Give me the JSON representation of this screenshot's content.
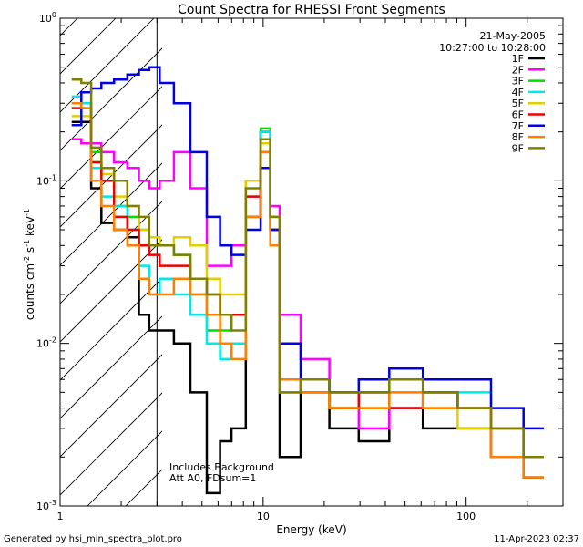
{
  "chart_data": {
    "type": "line",
    "title": "Count Spectra for RHESSI Front Segments",
    "xlabel": "Energy (keV)",
    "ylabel_main": "counts cm",
    "ylabel_sup1": "-2",
    "ylabel_mid": " s",
    "ylabel_sup2": "-1",
    "ylabel_end": " keV",
    "ylabel_sup3": "-1",
    "x_scale": "log",
    "y_scale": "log",
    "xlim": [
      1,
      300
    ],
    "ylim": [
      0.001,
      1
    ],
    "x_ticks": [
      {
        "value": 1,
        "label": "1"
      },
      {
        "value": 10,
        "label": "10"
      },
      {
        "value": 100,
        "label": "100"
      }
    ],
    "y_ticks": [
      {
        "value": 1,
        "base": "10",
        "exp": "0"
      },
      {
        "value": 0.1,
        "base": "10",
        "exp": "-1"
      },
      {
        "value": 0.01,
        "base": "10",
        "exp": "-2"
      },
      {
        "value": 0.001,
        "base": "10",
        "exp": "-3"
      }
    ],
    "attenuator_cutoff_kev": 3,
    "date": "21-May-2005",
    "time_range": "10:27:00 to 10:28:00",
    "notes": [
      "Includes Background",
      "Att A0, FDsum=1"
    ],
    "footer_left": "Generated by hsi_min_spectra_plot.pro",
    "footer_right": "11-Apr-2023 02:37",
    "series": [
      {
        "name": "1F",
        "color": "#000000",
        "values": [
          [
            1.2,
            0.23
          ],
          [
            1.35,
            0.23
          ],
          [
            1.5,
            0.09
          ],
          [
            1.7,
            0.055
          ],
          [
            2.0,
            0.05
          ],
          [
            2.3,
            0.045
          ],
          [
            2.6,
            0.015
          ],
          [
            2.9,
            0.012
          ],
          [
            3.3,
            0.012
          ],
          [
            4.0,
            0.01
          ],
          [
            4.8,
            0.005
          ],
          [
            5.8,
            0.0012
          ],
          [
            6.5,
            0.0025
          ],
          [
            7.5,
            0.003
          ],
          [
            9.0,
            0.06
          ],
          [
            10.5,
            0.2
          ],
          [
            11.2,
            0.05
          ],
          [
            13,
            0.002
          ],
          [
            18,
            0.006
          ],
          [
            25,
            0.003
          ],
          [
            35,
            0.0025
          ],
          [
            50,
            0.004
          ],
          [
            75,
            0.003
          ],
          [
            110,
            0.003
          ],
          [
            160,
            0.002
          ],
          [
            230,
            0.0015
          ]
        ]
      },
      {
        "name": "2F",
        "color": "#ff00ff",
        "values": [
          [
            1.2,
            0.18
          ],
          [
            1.35,
            0.17
          ],
          [
            1.5,
            0.17
          ],
          [
            1.7,
            0.15
          ],
          [
            2.0,
            0.13
          ],
          [
            2.3,
            0.12
          ],
          [
            2.6,
            0.1
          ],
          [
            2.9,
            0.09
          ],
          [
            3.3,
            0.1
          ],
          [
            4.0,
            0.15
          ],
          [
            4.8,
            0.09
          ],
          [
            5.8,
            0.03
          ],
          [
            6.5,
            0.03
          ],
          [
            7.5,
            0.04
          ],
          [
            9.0,
            0.1
          ],
          [
            10.5,
            0.2
          ],
          [
            11.2,
            0.07
          ],
          [
            13,
            0.015
          ],
          [
            18,
            0.008
          ],
          [
            25,
            0.005
          ],
          [
            35,
            0.003
          ],
          [
            50,
            0.004
          ],
          [
            75,
            0.005
          ],
          [
            110,
            0.004
          ],
          [
            160,
            0.003
          ],
          [
            230,
            0.002
          ]
        ]
      },
      {
        "name": "3F",
        "color": "#00e000",
        "values": [
          [
            1.2,
            0.3
          ],
          [
            1.35,
            0.3
          ],
          [
            1.5,
            0.15
          ],
          [
            1.7,
            0.1
          ],
          [
            2.0,
            0.07
          ],
          [
            2.3,
            0.06
          ],
          [
            2.6,
            0.05
          ],
          [
            2.9,
            0.045
          ],
          [
            3.3,
            0.04
          ],
          [
            4.0,
            0.035
          ],
          [
            4.8,
            0.02
          ],
          [
            5.8,
            0.012
          ],
          [
            6.5,
            0.012
          ],
          [
            7.5,
            0.015
          ],
          [
            9.0,
            0.1
          ],
          [
            10.5,
            0.21
          ],
          [
            11.2,
            0.06
          ],
          [
            13,
            0.005
          ],
          [
            18,
            0.006
          ],
          [
            25,
            0.004
          ],
          [
            35,
            0.005
          ],
          [
            50,
            0.006
          ],
          [
            75,
            0.005
          ],
          [
            110,
            0.004
          ],
          [
            160,
            0.003
          ],
          [
            230,
            0.002
          ]
        ]
      },
      {
        "name": "4F",
        "color": "#00e8e8",
        "values": [
          [
            1.2,
            0.33
          ],
          [
            1.35,
            0.3
          ],
          [
            1.5,
            0.12
          ],
          [
            1.7,
            0.08
          ],
          [
            2.0,
            0.07
          ],
          [
            2.3,
            0.05
          ],
          [
            2.6,
            0.03
          ],
          [
            2.9,
            0.02
          ],
          [
            3.3,
            0.025
          ],
          [
            4.0,
            0.02
          ],
          [
            4.8,
            0.015
          ],
          [
            5.8,
            0.01
          ],
          [
            6.5,
            0.008
          ],
          [
            7.5,
            0.01
          ],
          [
            9.0,
            0.08
          ],
          [
            10.5,
            0.2
          ],
          [
            11.2,
            0.05
          ],
          [
            13,
            0.005
          ],
          [
            18,
            0.005
          ],
          [
            25,
            0.004
          ],
          [
            35,
            0.005
          ],
          [
            50,
            0.004
          ],
          [
            75,
            0.005
          ],
          [
            110,
            0.005
          ],
          [
            160,
            0.003
          ],
          [
            230,
            0.002
          ]
        ]
      },
      {
        "name": "5F",
        "color": "#e0d000",
        "values": [
          [
            1.2,
            0.25
          ],
          [
            1.35,
            0.25
          ],
          [
            1.5,
            0.13
          ],
          [
            1.7,
            0.11
          ],
          [
            2.0,
            0.08
          ],
          [
            2.3,
            0.07
          ],
          [
            2.6,
            0.05
          ],
          [
            2.9,
            0.045
          ],
          [
            3.3,
            0.04
          ],
          [
            4.0,
            0.045
          ],
          [
            4.8,
            0.04
          ],
          [
            5.8,
            0.025
          ],
          [
            6.5,
            0.02
          ],
          [
            7.5,
            0.02
          ],
          [
            9.0,
            0.1
          ],
          [
            10.5,
            0.17
          ],
          [
            11.2,
            0.06
          ],
          [
            13,
            0.005
          ],
          [
            18,
            0.005
          ],
          [
            25,
            0.004
          ],
          [
            35,
            0.004
          ],
          [
            50,
            0.005
          ],
          [
            75,
            0.004
          ],
          [
            110,
            0.003
          ],
          [
            160,
            0.003
          ],
          [
            230,
            0.002
          ]
        ]
      },
      {
        "name": "6F",
        "color": "#ee0000",
        "values": [
          [
            1.2,
            0.28
          ],
          [
            1.35,
            0.28
          ],
          [
            1.5,
            0.13
          ],
          [
            1.7,
            0.1
          ],
          [
            2.0,
            0.06
          ],
          [
            2.3,
            0.05
          ],
          [
            2.6,
            0.04
          ],
          [
            2.9,
            0.035
          ],
          [
            3.3,
            0.03
          ],
          [
            4.0,
            0.03
          ],
          [
            4.8,
            0.025
          ],
          [
            5.8,
            0.02
          ],
          [
            6.5,
            0.015
          ],
          [
            7.5,
            0.015
          ],
          [
            9.0,
            0.08
          ],
          [
            10.5,
            0.15
          ],
          [
            11.2,
            0.05
          ],
          [
            13,
            0.006
          ],
          [
            18,
            0.005
          ],
          [
            25,
            0.004
          ],
          [
            35,
            0.005
          ],
          [
            50,
            0.004
          ],
          [
            75,
            0.005
          ],
          [
            110,
            0.004
          ],
          [
            160,
            0.003
          ],
          [
            230,
            0.002
          ]
        ]
      },
      {
        "name": "7F",
        "color": "#0000e0",
        "values": [
          [
            1.2,
            0.22
          ],
          [
            1.35,
            0.35
          ],
          [
            1.5,
            0.37
          ],
          [
            1.7,
            0.4
          ],
          [
            2.0,
            0.42
          ],
          [
            2.3,
            0.45
          ],
          [
            2.6,
            0.48
          ],
          [
            2.9,
            0.5
          ],
          [
            3.3,
            0.4
          ],
          [
            4.0,
            0.3
          ],
          [
            4.8,
            0.15
          ],
          [
            5.8,
            0.06
          ],
          [
            6.5,
            0.04
          ],
          [
            7.5,
            0.035
          ],
          [
            9.0,
            0.05
          ],
          [
            10.5,
            0.12
          ],
          [
            11.2,
            0.05
          ],
          [
            13,
            0.01
          ],
          [
            18,
            0.006
          ],
          [
            25,
            0.005
          ],
          [
            35,
            0.006
          ],
          [
            50,
            0.007
          ],
          [
            75,
            0.006
          ],
          [
            110,
            0.006
          ],
          [
            160,
            0.004
          ],
          [
            230,
            0.003
          ]
        ]
      },
      {
        "name": "8F",
        "color": "#ff8000",
        "values": [
          [
            1.2,
            0.3
          ],
          [
            1.35,
            0.28
          ],
          [
            1.5,
            0.1
          ],
          [
            1.7,
            0.07
          ],
          [
            2.0,
            0.05
          ],
          [
            2.3,
            0.04
          ],
          [
            2.6,
            0.025
          ],
          [
            2.9,
            0.02
          ],
          [
            3.3,
            0.02
          ],
          [
            4.0,
            0.025
          ],
          [
            4.8,
            0.02
          ],
          [
            5.8,
            0.015
          ],
          [
            6.5,
            0.01
          ],
          [
            7.5,
            0.008
          ],
          [
            9.0,
            0.06
          ],
          [
            10.5,
            0.15
          ],
          [
            11.2,
            0.04
          ],
          [
            13,
            0.006
          ],
          [
            18,
            0.005
          ],
          [
            25,
            0.004
          ],
          [
            35,
            0.004
          ],
          [
            50,
            0.005
          ],
          [
            75,
            0.004
          ],
          [
            110,
            0.004
          ],
          [
            160,
            0.002
          ],
          [
            230,
            0.0015
          ]
        ]
      },
      {
        "name": "9F",
        "color": "#808000",
        "values": [
          [
            1.2,
            0.42
          ],
          [
            1.35,
            0.4
          ],
          [
            1.5,
            0.16
          ],
          [
            1.7,
            0.12
          ],
          [
            2.0,
            0.1
          ],
          [
            2.3,
            0.07
          ],
          [
            2.6,
            0.06
          ],
          [
            2.9,
            0.04
          ],
          [
            3.3,
            0.04
          ],
          [
            4.0,
            0.035
          ],
          [
            4.8,
            0.025
          ],
          [
            5.8,
            0.02
          ],
          [
            6.5,
            0.015
          ],
          [
            7.5,
            0.012
          ],
          [
            9.0,
            0.09
          ],
          [
            10.5,
            0.18
          ],
          [
            11.2,
            0.06
          ],
          [
            13,
            0.005
          ],
          [
            18,
            0.006
          ],
          [
            25,
            0.005
          ],
          [
            35,
            0.005
          ],
          [
            50,
            0.006
          ],
          [
            75,
            0.005
          ],
          [
            110,
            0.004
          ],
          [
            160,
            0.003
          ],
          [
            230,
            0.002
          ]
        ]
      }
    ]
  }
}
